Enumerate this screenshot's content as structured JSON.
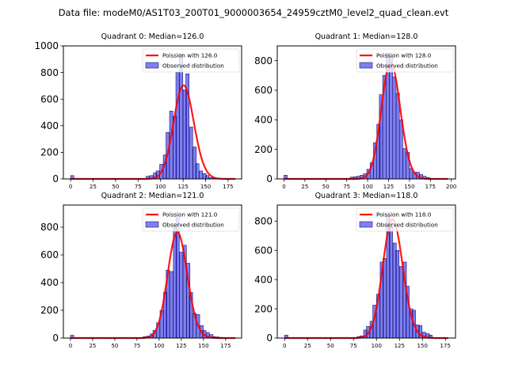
{
  "suptitle": "Data file: modeM0/AS1T03_200T01_9000003654_24959cztM0_level2_quad_clean.evt",
  "chart_data": [
    {
      "type": "bar",
      "title": "Quadrant 0: Median=126.0",
      "xlim": [
        -8,
        190
      ],
      "ylim": [
        0,
        1000
      ],
      "xticks": [
        0,
        25,
        50,
        75,
        100,
        125,
        150,
        175
      ],
      "yticks": [
        0,
        200,
        400,
        600,
        800,
        1000
      ],
      "bin_width": 3.66,
      "bins_start": [
        0,
        84,
        88,
        92,
        95,
        99,
        103,
        106,
        110,
        114,
        117,
        121,
        125,
        128,
        132,
        136,
        139,
        143,
        147,
        150,
        154,
        158,
        161,
        165
      ],
      "values": [
        25,
        20,
        25,
        45,
        60,
        110,
        180,
        350,
        510,
        470,
        800,
        940,
        670,
        790,
        390,
        240,
        115,
        60,
        40,
        25,
        10,
        5,
        3,
        2
      ],
      "poisson_mean": 126.0,
      "legend": [
        "Poission with 126.0",
        "Observed distribution"
      ],
      "legend_loc": "upper right",
      "xmax_curve": 183
    },
    {
      "type": "bar",
      "title": "Quadrant 1: Median=128.0",
      "xlim": [
        -8,
        205
      ],
      "ylim": [
        0,
        900
      ],
      "xticks": [
        0,
        25,
        50,
        75,
        100,
        125,
        150,
        175,
        200
      ],
      "yticks": [
        0,
        200,
        400,
        600,
        800
      ],
      "bin_width": 3.95,
      "bins_start": [
        0,
        79,
        83,
        87,
        91,
        95,
        99,
        103,
        107,
        111,
        114,
        118,
        122,
        126,
        130,
        134,
        138,
        142,
        146,
        150,
        154,
        158,
        162,
        166,
        170,
        174
      ],
      "values": [
        25,
        12,
        15,
        18,
        25,
        35,
        65,
        110,
        245,
        370,
        570,
        700,
        850,
        830,
        690,
        580,
        400,
        205,
        180,
        70,
        45,
        45,
        30,
        18,
        10,
        3
      ],
      "poisson_mean": 128.0,
      "legend": [
        "Poission with 128.0",
        "Observed distribution"
      ],
      "legend_loc": "upper right",
      "xmax_curve": 196
    },
    {
      "type": "bar",
      "title": "Quadrant 2: Median=121.0",
      "xlim": [
        -8,
        193
      ],
      "ylim": [
        0,
        960
      ],
      "xticks": [
        0,
        25,
        50,
        75,
        100,
        125,
        150,
        175
      ],
      "yticks": [
        0,
        200,
        400,
        600,
        800
      ],
      "bin_width": 3.72,
      "bins_start": [
        0,
        82,
        86,
        90,
        93,
        97,
        101,
        105,
        108,
        112,
        116,
        119,
        123,
        127,
        131,
        134,
        138,
        142,
        146,
        149,
        153,
        157,
        160,
        164,
        168
      ],
      "values": [
        20,
        10,
        15,
        30,
        55,
        110,
        200,
        330,
        490,
        480,
        800,
        870,
        620,
        670,
        540,
        330,
        180,
        170,
        90,
        55,
        40,
        25,
        10,
        8,
        5
      ],
      "poisson_mean": 121.0,
      "legend": [
        "Poission with 121.0",
        "Observed distribution"
      ],
      "legend_loc": "upper right",
      "xmax_curve": 186
    },
    {
      "type": "bar",
      "title": "Quadrant 3: Median=118.0",
      "xlim": [
        -8,
        186
      ],
      "ylim": [
        0,
        910
      ],
      "xticks": [
        0,
        25,
        50,
        75,
        100,
        125,
        150,
        175
      ],
      "yticks": [
        0,
        200,
        400,
        600,
        800
      ],
      "bin_width": 3.56,
      "bins_start": [
        0,
        79,
        82,
        86,
        89,
        93,
        96,
        100,
        104,
        107,
        111,
        114,
        118,
        121,
        125,
        129,
        132,
        136,
        139,
        143,
        146,
        150,
        154,
        157
      ],
      "values": [
        20,
        10,
        15,
        55,
        80,
        115,
        225,
        300,
        520,
        545,
        840,
        760,
        650,
        600,
        490,
        520,
        355,
        200,
        190,
        90,
        85,
        40,
        30,
        20
      ],
      "poisson_mean": 118.0,
      "legend": [
        "Poission with 118.0",
        "Observed distribution"
      ],
      "legend_loc": "upper right",
      "xmax_curve": 178
    }
  ]
}
